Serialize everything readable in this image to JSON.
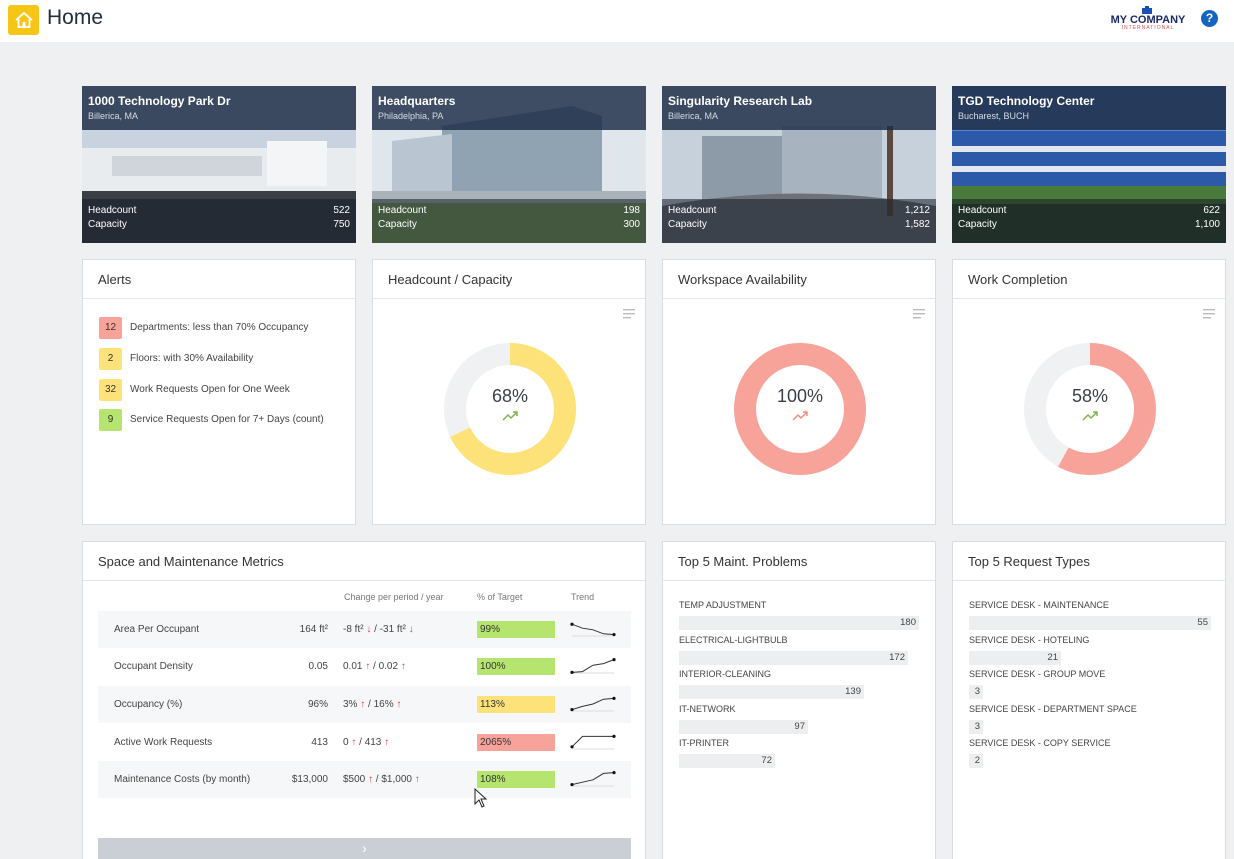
{
  "header": {
    "title": "Home",
    "logo_name": "MY COMPANY",
    "logo_sub": "INTERNATIONAL",
    "help": "?"
  },
  "locations": [
    {
      "name": "1000 Technology Park Dr",
      "city": "Billerica, MA",
      "headcount_label": "Headcount",
      "headcount": "522",
      "capacity_label": "Capacity",
      "capacity": "750"
    },
    {
      "name": "Headquarters",
      "city": "Philadelphia, PA",
      "headcount_label": "Headcount",
      "headcount": "198",
      "capacity_label": "Capacity",
      "capacity": "300"
    },
    {
      "name": "Singularity Research Lab",
      "city": "Billerica, MA",
      "headcount_label": "Headcount",
      "headcount": "1,212",
      "capacity_label": "Capacity",
      "capacity": "1,582"
    },
    {
      "name": "TGD Technology Center",
      "city": "Bucharest, BUCH",
      "headcount_label": "Headcount",
      "headcount": "622",
      "capacity_label": "Capacity",
      "capacity": "1,100"
    }
  ],
  "alerts": {
    "title": "Alerts",
    "items": [
      {
        "count": "12",
        "text": "Departments: less than 70% Occupancy",
        "color": "#f8a39a"
      },
      {
        "count": "2",
        "text": "Floors: with 30% Availability",
        "color": "#fde27a"
      },
      {
        "count": "32",
        "text": "Work Requests Open for One Week",
        "color": "#fde27a"
      },
      {
        "count": "9",
        "text": "Service Requests Open for 7+ Days (count)",
        "color": "#b6e56f"
      }
    ]
  },
  "gauges": [
    {
      "title": "Headcount / Capacity",
      "label": "68%",
      "value": 0.68,
      "color": "#fde27a",
      "trend_color": "#7cb342"
    },
    {
      "title": "Workspace Availability",
      "label": "100%",
      "value": 1.0,
      "color": "#f8a39a",
      "trend_color": "#f4877a"
    },
    {
      "title": "Work Completion",
      "label": "58%",
      "value": 0.58,
      "color": "#f8a39a",
      "trend_color": "#7cb342"
    }
  ],
  "metrics": {
    "title": "Space and Maintenance Metrics",
    "col_change": "Change per period / year",
    "col_target": "% of Target",
    "col_trend": "Trend",
    "rows": [
      {
        "label": "Area Per Occupant",
        "value": "164 ft²",
        "change_period": "-8 ft²",
        "change_period_arrow": "↓",
        "change_year": "-31 ft²",
        "change_year_arrow": "↓",
        "target": "99%",
        "target_color": "#b6e56f",
        "trend": [
          0.8,
          0.55,
          0.45,
          0.2,
          0.15
        ]
      },
      {
        "label": "Occupant Density",
        "value": "0.05",
        "change_period": "0.01",
        "change_period_arrow": "↑",
        "change_year": "0.02",
        "change_year_arrow": "↑",
        "target": "100%",
        "target_color": "#b6e56f",
        "trend": [
          0.1,
          0.15,
          0.55,
          0.65,
          0.9
        ]
      },
      {
        "label": "Occupancy (%)",
        "value": "96%",
        "change_period": "3%",
        "change_period_arrow": "↑",
        "change_year": "16%",
        "change_year_arrow": "↑",
        "target": "113%",
        "target_color": "#fde27a",
        "trend": [
          0.15,
          0.35,
          0.5,
          0.8,
          0.85
        ]
      },
      {
        "label": "Active Work Requests",
        "value": "413",
        "change_period": "0",
        "change_period_arrow": "↑",
        "change_year": "413",
        "change_year_arrow": "↑",
        "target": "2065%",
        "target_color": "#f8a39a",
        "trend": [
          0.2,
          0.85,
          0.85,
          0.85,
          0.85
        ]
      },
      {
        "label": "Maintenance Costs (by month)",
        "value": "$13,000",
        "change_period": "$500",
        "change_period_arrow": "↑",
        "change_year": "$1,000",
        "change_year_arrow": "↑",
        "target": "108%",
        "target_color": "#b6e56f",
        "trend": [
          0.15,
          0.3,
          0.45,
          0.85,
          0.9
        ]
      }
    ],
    "more": "›"
  },
  "top_maint": {
    "title": "Top 5 Maint. Problems",
    "max": 240,
    "items": [
      {
        "label": "TEMP ADJUSTMENT",
        "value": 180
      },
      {
        "label": "ELECTRICAL-LIGHTBULB",
        "value": 172
      },
      {
        "label": "INTERIOR-CLEANING",
        "value": 139
      },
      {
        "label": "IT-NETWORK",
        "value": 97
      },
      {
        "label": "IT-PRINTER",
        "value": 72
      }
    ]
  },
  "top_requests": {
    "title": "Top 5 Request Types",
    "max": 55,
    "items": [
      {
        "label": "SERVICE DESK - MAINTENANCE",
        "value": 55
      },
      {
        "label": "SERVICE DESK - HOTELING",
        "value": 21
      },
      {
        "label": "SERVICE DESK - GROUP MOVE",
        "value": 3
      },
      {
        "label": "SERVICE DESK - DEPARTMENT SPACE",
        "value": 3
      },
      {
        "label": "SERVICE DESK - COPY SERVICE",
        "value": 2
      }
    ]
  }
}
